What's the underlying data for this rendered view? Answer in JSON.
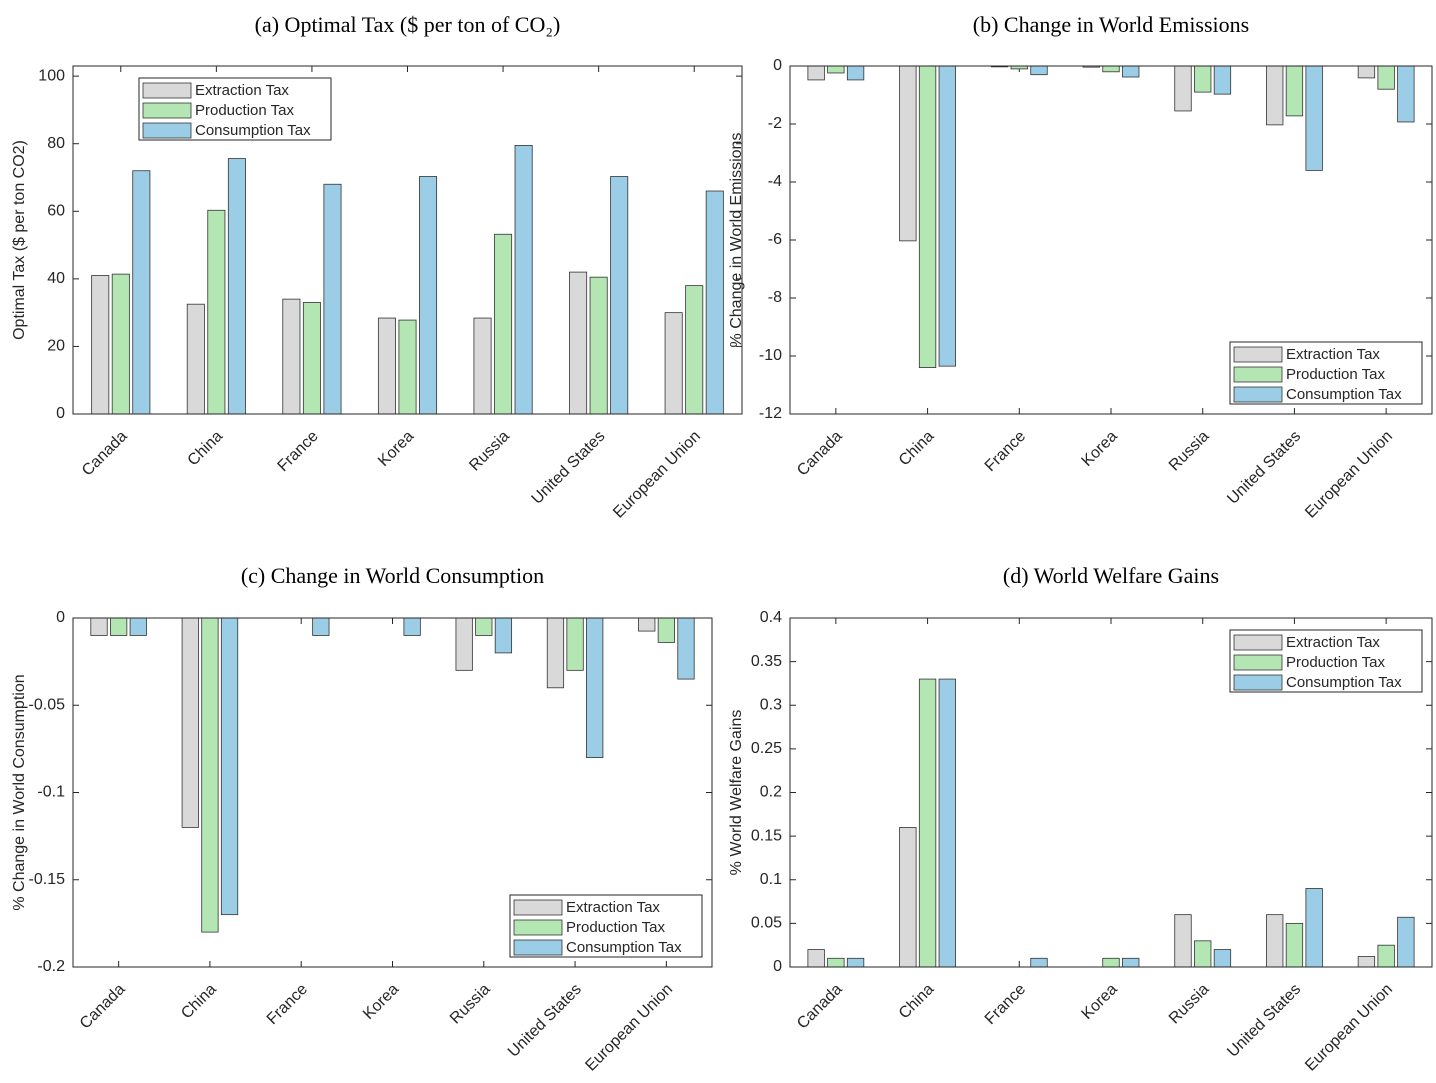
{
  "chart_data": [
    {
      "type": "bar",
      "title": "(a) Optimal Tax ($ per ton of CO₂)",
      "ylabel": "Optimal Tax ($ per ton CO2)",
      "categories": [
        "Canada",
        "China",
        "France",
        "Korea",
        "Russia",
        "United States",
        "European Union"
      ],
      "series": [
        {
          "name": "Extraction Tax",
          "color": "#d9d9d9",
          "values": [
            41,
            32.5,
            34,
            28.4,
            28.4,
            42,
            30
          ]
        },
        {
          "name": "Production Tax",
          "color": "#b3e6b3",
          "values": [
            41.4,
            60.3,
            33,
            27.8,
            53.2,
            40.5,
            38
          ]
        },
        {
          "name": "Consumption Tax",
          "color": "#9ccde6",
          "values": [
            72,
            75.6,
            68,
            70.3,
            79.5,
            70.3,
            66
          ]
        }
      ],
      "ylim": [
        0,
        103
      ],
      "yticks": [
        0,
        20,
        40,
        60,
        80,
        100
      ],
      "grid": false,
      "legend": "upper left"
    },
    {
      "type": "bar",
      "title": "(b) Change in World Emissions",
      "ylabel": "% Change in World Emissions",
      "categories": [
        "Canada",
        "China",
        "France",
        "Korea",
        "Russia",
        "United States",
        "European Union"
      ],
      "series": [
        {
          "name": "Extraction Tax",
          "color": "#d9d9d9",
          "values": [
            -0.48,
            -6.03,
            -0.03,
            -0.04,
            -1.55,
            -2.03,
            -0.41
          ]
        },
        {
          "name": "Production Tax",
          "color": "#b3e6b3",
          "values": [
            -0.24,
            -10.4,
            -0.1,
            -0.2,
            -0.9,
            -1.72,
            -0.8
          ]
        },
        {
          "name": "Consumption Tax",
          "color": "#9ccde6",
          "values": [
            -0.48,
            -10.35,
            -0.3,
            -0.38,
            -0.97,
            -3.6,
            -1.93
          ]
        }
      ],
      "ylim": [
        -12,
        0
      ],
      "yticks": [
        0,
        -2,
        -4,
        -6,
        -8,
        -10,
        -12
      ],
      "grid": false,
      "legend": "lower right"
    },
    {
      "type": "bar",
      "title": "(c) Change in World Consumption",
      "ylabel": "% Change in World Consumption",
      "categories": [
        "Canada",
        "China",
        "France",
        "Korea",
        "Russia",
        "United States",
        "European Union"
      ],
      "series": [
        {
          "name": "Extraction Tax",
          "color": "#d9d9d9",
          "values": [
            -0.01,
            -0.12,
            0,
            0,
            -0.03,
            -0.04,
            -0.0075
          ]
        },
        {
          "name": "Production Tax",
          "color": "#b3e6b3",
          "values": [
            -0.01,
            -0.18,
            0,
            0,
            -0.01,
            -0.03,
            -0.014
          ]
        },
        {
          "name": "Consumption Tax",
          "color": "#9ccde6",
          "values": [
            -0.01,
            -0.17,
            -0.01,
            -0.01,
            -0.02,
            -0.08,
            -0.035
          ]
        }
      ],
      "ylim": [
        -0.2,
        0
      ],
      "yticks": [
        0,
        -0.05,
        -0.1,
        -0.15,
        -0.2
      ],
      "grid": false,
      "legend": "lower right"
    },
    {
      "type": "bar",
      "title": "(d) World Welfare Gains",
      "ylabel": "% World Welfare Gains",
      "categories": [
        "Canada",
        "China",
        "France",
        "Korea",
        "Russia",
        "United States",
        "European Union"
      ],
      "series": [
        {
          "name": "Extraction Tax",
          "color": "#d9d9d9",
          "values": [
            0.02,
            0.16,
            0,
            0,
            0.06,
            0.06,
            0.012
          ]
        },
        {
          "name": "Production Tax",
          "color": "#b3e6b3",
          "values": [
            0.01,
            0.33,
            0,
            0.01,
            0.03,
            0.05,
            0.025
          ]
        },
        {
          "name": "Consumption Tax",
          "color": "#9ccde6",
          "values": [
            0.01,
            0.33,
            0.01,
            0.01,
            0.02,
            0.09,
            0.057
          ]
        }
      ],
      "ylim": [
        0,
        0.4
      ],
      "yticks": [
        0,
        0.05,
        0.1,
        0.15,
        0.2,
        0.25,
        0.3,
        0.35,
        0.4
      ],
      "grid": false,
      "legend": "upper right"
    }
  ]
}
